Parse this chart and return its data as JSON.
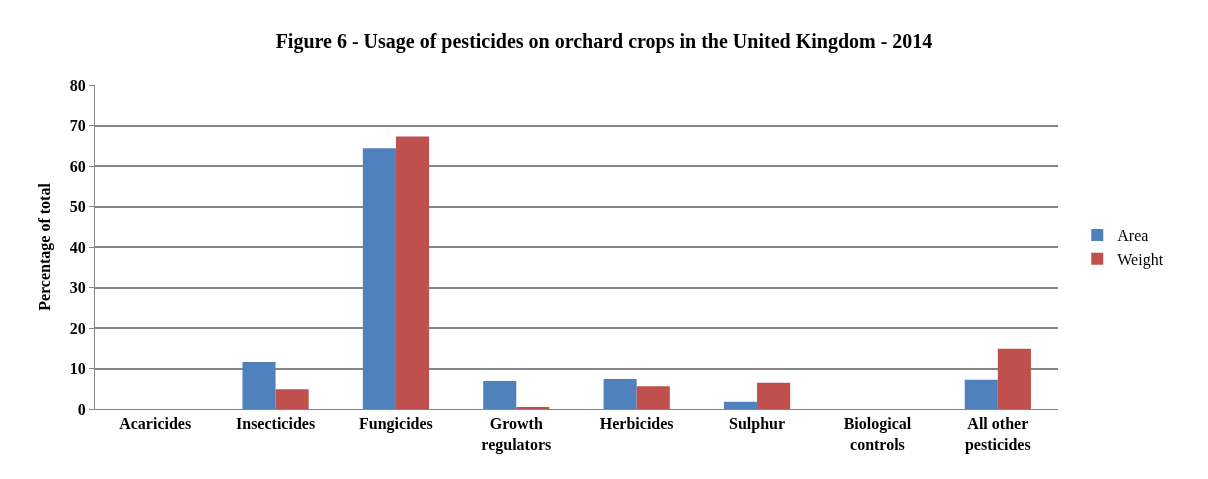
{
  "chart_data": {
    "type": "bar",
    "title": "Figure 6 - Usage of pesticides on orchard crops in the United Kingdom - 2014",
    "ylabel": "Percentage of total",
    "categories": [
      "Acaricides",
      "Insecticides",
      "Fungicides",
      "Growth\nregulators",
      "Herbicides",
      "Sulphur",
      "Biological\ncontrols",
      "All other\npesticides"
    ],
    "series": [
      {
        "name": "Area",
        "color": "#4f81bd",
        "values": [
          0,
          11.6,
          64.4,
          6.9,
          7.4,
          1.8,
          0,
          7.2
        ]
      },
      {
        "name": "Weight",
        "color": "#c0504d",
        "values": [
          0,
          4.9,
          67.3,
          0.4,
          5.6,
          6.5,
          0,
          14.9
        ]
      }
    ],
    "ylim": [
      0,
      80
    ],
    "yticks": [
      0,
      10,
      20,
      30,
      40,
      50,
      60,
      70,
      80
    ],
    "grid": "y",
    "legend": "right"
  }
}
